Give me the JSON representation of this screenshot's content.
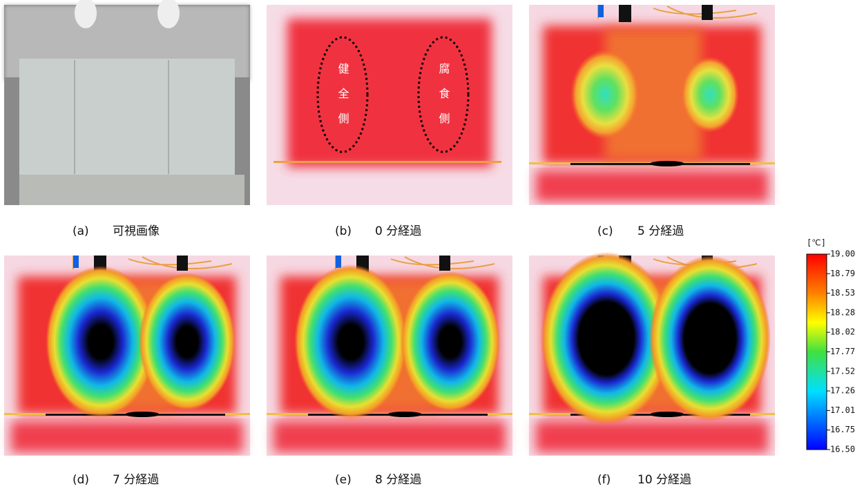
{
  "panels": [
    {
      "label": "(a)",
      "title": "可視画像"
    },
    {
      "label": "(b)",
      "title": "0 分経過"
    },
    {
      "label": "(c)",
      "title": "5 分経過"
    },
    {
      "label": "(d)",
      "title": "7 分経過"
    },
    {
      "label": "(e)",
      "title": "8 分経過"
    },
    {
      "label": "(f)",
      "title": "10 分経過"
    }
  ],
  "annotations": [
    "健全側",
    "腐食側"
  ],
  "colorbar": {
    "unit": "[℃]",
    "labels": [
      "19.00",
      "18.79",
      "18.53",
      "18.28",
      "18.02",
      "17.77",
      "17.52",
      "17.26",
      "17.01",
      "16.75",
      "16.50"
    ]
  }
}
